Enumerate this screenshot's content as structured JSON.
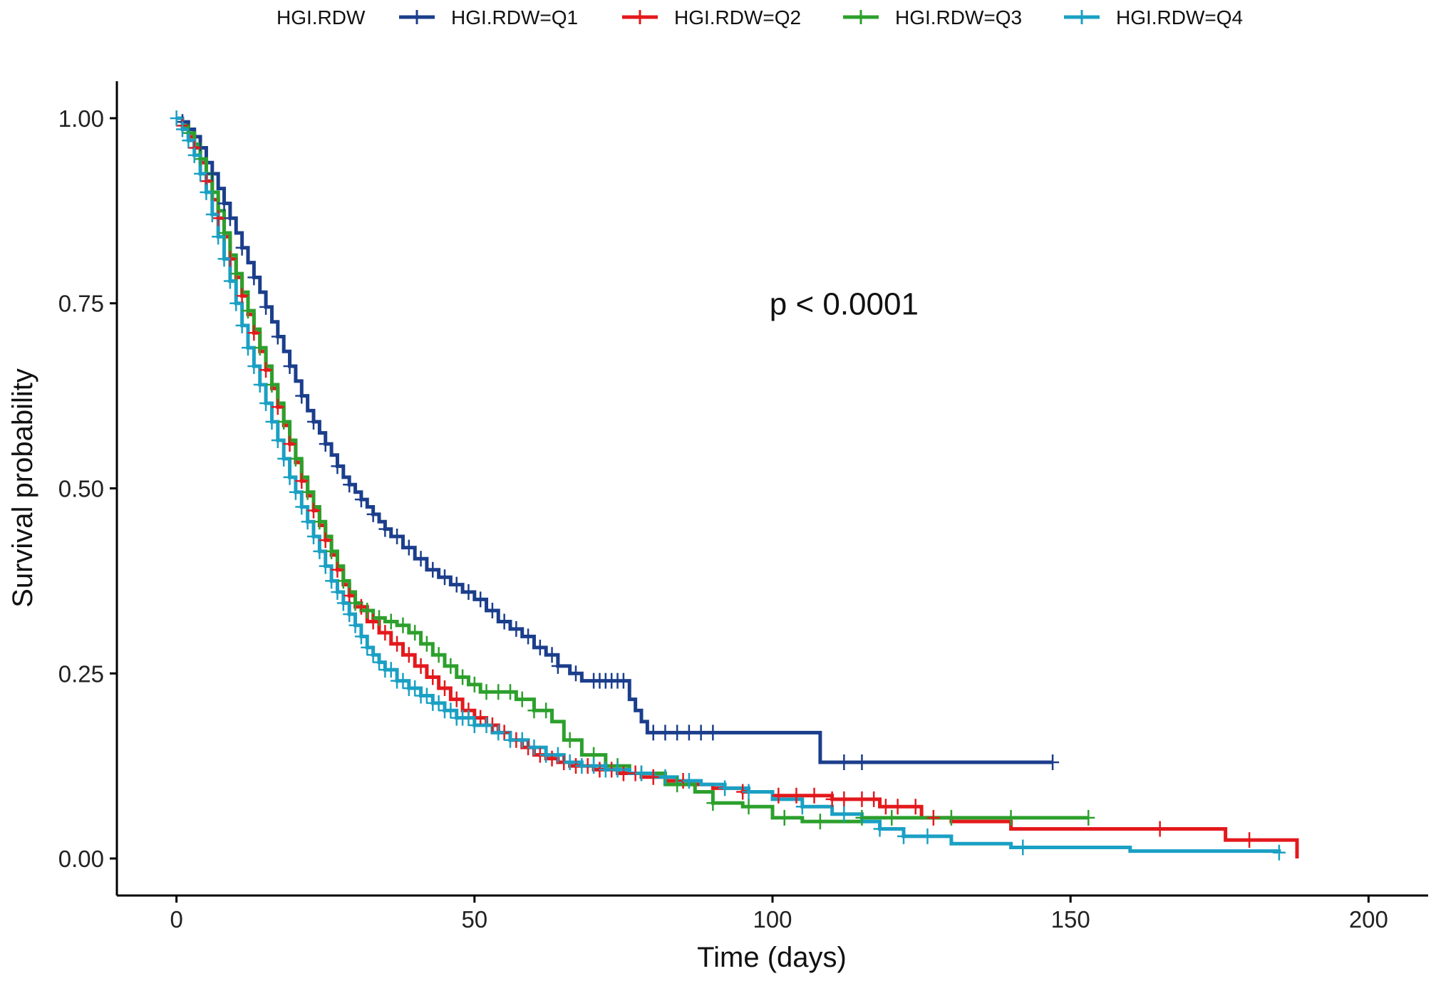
{
  "chart_data": {
    "type": "line",
    "subtype": "kaplan-meier",
    "title": "",
    "xlabel": "Time (days)",
    "ylabel": "Survival probability",
    "xlim": [
      -10,
      210
    ],
    "ylim": [
      -0.05,
      1.05
    ],
    "xticks": [
      0,
      50,
      100,
      150,
      200
    ],
    "xtick_labels": [
      "0",
      "50",
      "100",
      "150",
      "200"
    ],
    "yticks": [
      0,
      0.25,
      0.5,
      0.75,
      1
    ],
    "ytick_labels": [
      "0.00",
      "0.25",
      "0.50",
      "0.75",
      "1.00"
    ],
    "grid": false,
    "annotation": {
      "text": "p < 0.0001",
      "x": 112,
      "y": 0.75
    },
    "legend": {
      "title": "HGI.RDW",
      "position": "top"
    },
    "series": [
      {
        "name": "HGI.RDW=Q1",
        "color": "#1B3E8C",
        "points": [
          [
            0,
            1.0
          ],
          [
            1,
            0.995
          ],
          [
            2,
            0.985
          ],
          [
            3,
            0.975
          ],
          [
            4,
            0.96
          ],
          [
            5,
            0.94
          ],
          [
            6,
            0.925
          ],
          [
            7,
            0.905
          ],
          [
            8,
            0.885
          ],
          [
            9,
            0.865
          ],
          [
            10,
            0.845
          ],
          [
            11,
            0.825
          ],
          [
            12,
            0.805
          ],
          [
            13,
            0.785
          ],
          [
            14,
            0.765
          ],
          [
            15,
            0.745
          ],
          [
            16,
            0.725
          ],
          [
            17,
            0.705
          ],
          [
            18,
            0.685
          ],
          [
            19,
            0.665
          ],
          [
            20,
            0.645
          ],
          [
            21,
            0.625
          ],
          [
            22,
            0.605
          ],
          [
            23,
            0.59
          ],
          [
            24,
            0.575
          ],
          [
            25,
            0.56
          ],
          [
            26,
            0.545
          ],
          [
            27,
            0.53
          ],
          [
            28,
            0.515
          ],
          [
            29,
            0.505
          ],
          [
            30,
            0.495
          ],
          [
            31,
            0.485
          ],
          [
            32,
            0.475
          ],
          [
            33,
            0.465
          ],
          [
            34,
            0.455
          ],
          [
            35,
            0.445
          ],
          [
            36,
            0.435
          ],
          [
            38,
            0.42
          ],
          [
            40,
            0.405
          ],
          [
            42,
            0.39
          ],
          [
            44,
            0.38
          ],
          [
            46,
            0.37
          ],
          [
            48,
            0.36
          ],
          [
            50,
            0.35
          ],
          [
            52,
            0.335
          ],
          [
            54,
            0.32
          ],
          [
            56,
            0.31
          ],
          [
            58,
            0.3
          ],
          [
            60,
            0.285
          ],
          [
            62,
            0.275
          ],
          [
            64,
            0.26
          ],
          [
            66,
            0.25
          ],
          [
            68,
            0.24
          ],
          [
            75,
            0.24
          ],
          [
            76,
            0.215
          ],
          [
            77,
            0.2
          ],
          [
            78,
            0.185
          ],
          [
            79,
            0.17
          ],
          [
            107,
            0.17
          ],
          [
            108,
            0.13
          ],
          [
            147,
            0.13
          ]
        ],
        "censor_x": [
          1,
          2,
          4,
          6,
          8,
          9,
          11,
          13,
          15,
          17,
          19,
          21,
          23,
          25,
          27,
          29,
          31,
          33,
          35,
          37,
          39,
          41,
          43,
          45,
          47,
          49,
          51,
          53,
          55,
          57,
          59,
          61,
          63,
          64,
          67,
          70,
          71,
          72,
          73,
          74,
          75,
          80,
          82,
          84,
          86,
          88,
          90,
          112,
          115,
          147
        ]
      },
      {
        "name": "HGI.RDW=Q2",
        "color": "#E3191C",
        "points": [
          [
            0,
            1.0
          ],
          [
            1,
            0.99
          ],
          [
            2,
            0.975
          ],
          [
            3,
            0.96
          ],
          [
            4,
            0.94
          ],
          [
            5,
            0.915
          ],
          [
            6,
            0.89
          ],
          [
            7,
            0.865
          ],
          [
            8,
            0.84
          ],
          [
            9,
            0.81
          ],
          [
            10,
            0.785
          ],
          [
            11,
            0.76
          ],
          [
            12,
            0.735
          ],
          [
            13,
            0.71
          ],
          [
            14,
            0.685
          ],
          [
            15,
            0.66
          ],
          [
            16,
            0.635
          ],
          [
            17,
            0.61
          ],
          [
            18,
            0.585
          ],
          [
            19,
            0.56
          ],
          [
            20,
            0.535
          ],
          [
            21,
            0.51
          ],
          [
            22,
            0.49
          ],
          [
            23,
            0.47
          ],
          [
            24,
            0.45
          ],
          [
            25,
            0.43
          ],
          [
            26,
            0.41
          ],
          [
            27,
            0.39
          ],
          [
            28,
            0.37
          ],
          [
            29,
            0.355
          ],
          [
            30,
            0.34
          ],
          [
            32,
            0.32
          ],
          [
            34,
            0.305
          ],
          [
            36,
            0.29
          ],
          [
            38,
            0.275
          ],
          [
            40,
            0.26
          ],
          [
            42,
            0.245
          ],
          [
            44,
            0.23
          ],
          [
            46,
            0.215
          ],
          [
            48,
            0.2
          ],
          [
            50,
            0.19
          ],
          [
            52,
            0.18
          ],
          [
            54,
            0.17
          ],
          [
            56,
            0.16
          ],
          [
            58,
            0.15
          ],
          [
            60,
            0.14
          ],
          [
            62,
            0.135
          ],
          [
            64,
            0.13
          ],
          [
            66,
            0.125
          ],
          [
            70,
            0.12
          ],
          [
            74,
            0.115
          ],
          [
            78,
            0.11
          ],
          [
            82,
            0.105
          ],
          [
            86,
            0.1
          ],
          [
            90,
            0.095
          ],
          [
            95,
            0.09
          ],
          [
            100,
            0.085
          ],
          [
            110,
            0.08
          ],
          [
            118,
            0.07
          ],
          [
            125,
            0.055
          ],
          [
            130,
            0.05
          ],
          [
            140,
            0.04
          ],
          [
            172,
            0.04
          ],
          [
            176,
            0.025
          ],
          [
            188,
            0.025
          ],
          [
            188,
            0.0
          ]
        ],
        "censor_x": [
          1,
          3,
          5,
          7,
          9,
          11,
          13,
          15,
          17,
          19,
          21,
          23,
          25,
          27,
          29,
          31,
          33,
          35,
          37,
          39,
          41,
          43,
          45,
          47,
          49,
          51,
          53,
          55,
          57,
          59,
          61,
          63,
          65,
          67,
          69,
          71,
          73,
          75,
          77,
          80,
          85,
          95,
          101,
          104,
          107,
          110,
          112,
          115,
          117,
          119,
          121,
          124,
          127,
          165,
          180
        ]
      },
      {
        "name": "HGI.RDW=Q3",
        "color": "#2CA02C",
        "points": [
          [
            0,
            1.0
          ],
          [
            1,
            0.99
          ],
          [
            2,
            0.98
          ],
          [
            3,
            0.965
          ],
          [
            4,
            0.945
          ],
          [
            5,
            0.925
          ],
          [
            6,
            0.9
          ],
          [
            7,
            0.875
          ],
          [
            8,
            0.845
          ],
          [
            9,
            0.815
          ],
          [
            10,
            0.79
          ],
          [
            11,
            0.765
          ],
          [
            12,
            0.74
          ],
          [
            13,
            0.715
          ],
          [
            14,
            0.69
          ],
          [
            15,
            0.665
          ],
          [
            16,
            0.64
          ],
          [
            17,
            0.615
          ],
          [
            18,
            0.59
          ],
          [
            19,
            0.565
          ],
          [
            20,
            0.54
          ],
          [
            21,
            0.515
          ],
          [
            22,
            0.495
          ],
          [
            23,
            0.475
          ],
          [
            24,
            0.455
          ],
          [
            25,
            0.435
          ],
          [
            26,
            0.415
          ],
          [
            27,
            0.395
          ],
          [
            28,
            0.375
          ],
          [
            29,
            0.36
          ],
          [
            30,
            0.345
          ],
          [
            31,
            0.335
          ],
          [
            33,
            0.325
          ],
          [
            35,
            0.32
          ],
          [
            37,
            0.315
          ],
          [
            39,
            0.305
          ],
          [
            41,
            0.29
          ],
          [
            43,
            0.275
          ],
          [
            45,
            0.26
          ],
          [
            47,
            0.245
          ],
          [
            49,
            0.235
          ],
          [
            51,
            0.225
          ],
          [
            57,
            0.215
          ],
          [
            60,
            0.2
          ],
          [
            63,
            0.185
          ],
          [
            65,
            0.16
          ],
          [
            68,
            0.14
          ],
          [
            72,
            0.125
          ],
          [
            76,
            0.115
          ],
          [
            82,
            0.1
          ],
          [
            87,
            0.09
          ],
          [
            90,
            0.075
          ],
          [
            95,
            0.07
          ],
          [
            100,
            0.055
          ],
          [
            105,
            0.05
          ],
          [
            110,
            0.05
          ],
          [
            115,
            0.055
          ],
          [
            153,
            0.055
          ]
        ],
        "censor_x": [
          2,
          4,
          6,
          8,
          10,
          12,
          14,
          16,
          18,
          20,
          22,
          24,
          26,
          28,
          30,
          32,
          34,
          36,
          38,
          40,
          42,
          44,
          46,
          48,
          50,
          52,
          54,
          56,
          58,
          60,
          62,
          66,
          70,
          74,
          78,
          84,
          90,
          96,
          102,
          108,
          115,
          120,
          130,
          140,
          153
        ]
      },
      {
        "name": "HGI.RDW=Q4",
        "color": "#1AA0C4",
        "points": [
          [
            0,
            1.0
          ],
          [
            1,
            0.985
          ],
          [
            2,
            0.97
          ],
          [
            3,
            0.95
          ],
          [
            4,
            0.925
          ],
          [
            5,
            0.9
          ],
          [
            6,
            0.87
          ],
          [
            7,
            0.84
          ],
          [
            8,
            0.81
          ],
          [
            9,
            0.78
          ],
          [
            10,
            0.75
          ],
          [
            11,
            0.72
          ],
          [
            12,
            0.69
          ],
          [
            13,
            0.665
          ],
          [
            14,
            0.64
          ],
          [
            15,
            0.615
          ],
          [
            16,
            0.59
          ],
          [
            17,
            0.565
          ],
          [
            18,
            0.54
          ],
          [
            19,
            0.515
          ],
          [
            20,
            0.495
          ],
          [
            21,
            0.475
          ],
          [
            22,
            0.455
          ],
          [
            23,
            0.435
          ],
          [
            24,
            0.415
          ],
          [
            25,
            0.395
          ],
          [
            26,
            0.375
          ],
          [
            27,
            0.36
          ],
          [
            28,
            0.345
          ],
          [
            29,
            0.33
          ],
          [
            30,
            0.315
          ],
          [
            31,
            0.3
          ],
          [
            32,
            0.285
          ],
          [
            33,
            0.275
          ],
          [
            34,
            0.265
          ],
          [
            35,
            0.255
          ],
          [
            37,
            0.24
          ],
          [
            39,
            0.23
          ],
          [
            41,
            0.22
          ],
          [
            43,
            0.21
          ],
          [
            45,
            0.2
          ],
          [
            47,
            0.19
          ],
          [
            50,
            0.18
          ],
          [
            53,
            0.17
          ],
          [
            56,
            0.16
          ],
          [
            59,
            0.15
          ],
          [
            62,
            0.14
          ],
          [
            65,
            0.13
          ],
          [
            68,
            0.125
          ],
          [
            72,
            0.12
          ],
          [
            76,
            0.115
          ],
          [
            80,
            0.11
          ],
          [
            84,
            0.105
          ],
          [
            88,
            0.1
          ],
          [
            92,
            0.095
          ],
          [
            96,
            0.09
          ],
          [
            100,
            0.08
          ],
          [
            105,
            0.07
          ],
          [
            110,
            0.06
          ],
          [
            115,
            0.05
          ],
          [
            118,
            0.04
          ],
          [
            122,
            0.03
          ],
          [
            130,
            0.02
          ],
          [
            140,
            0.015
          ],
          [
            160,
            0.01
          ],
          [
            185,
            0.008
          ]
        ],
        "censor_x": [
          0,
          1,
          2,
          3,
          4,
          5,
          6,
          7,
          8,
          9,
          10,
          11,
          12,
          13,
          14,
          15,
          16,
          17,
          18,
          19,
          20,
          21,
          22,
          23,
          24,
          25,
          26,
          27,
          28,
          29,
          30,
          31,
          32,
          33,
          34,
          35,
          36,
          37,
          38,
          39,
          40,
          41,
          42,
          43,
          44,
          45,
          46,
          47,
          48,
          49,
          50,
          52,
          54,
          56,
          58,
          60,
          62,
          64,
          66,
          68,
          70,
          72,
          74,
          78,
          82,
          86,
          92,
          96,
          105,
          112,
          118,
          122,
          126,
          142,
          185
        ]
      }
    ]
  }
}
